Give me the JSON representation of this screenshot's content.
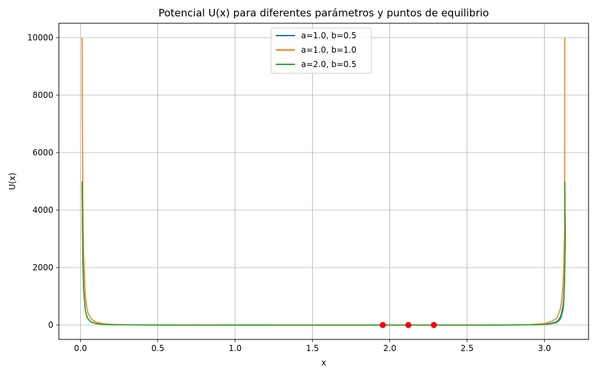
{
  "chart_data": {
    "type": "line",
    "title": "Potencial U(x) para diferentes parámetros y puntos de equilibrio",
    "xlabel": "x",
    "ylabel": "U(x)",
    "xlim": [
      -0.14,
      3.285
    ],
    "ylim": [
      -500,
      10500
    ],
    "xticks": [
      0.0,
      0.5,
      1.0,
      1.5,
      2.0,
      2.5,
      3.0
    ],
    "xtick_labels": [
      "0.0",
      "0.5",
      "1.0",
      "1.5",
      "2.0",
      "2.5",
      "3.0"
    ],
    "yticks": [
      0,
      2000,
      4000,
      6000,
      8000,
      10000
    ],
    "ytick_labels": [
      "0",
      "2000",
      "4000",
      "6000",
      "8000",
      "10000"
    ],
    "grid": true,
    "legend_position": "top-center",
    "series": [
      {
        "name": "a=1.0, b=0.5",
        "color": "#1f77b4",
        "points": [
          [
            0.01,
            5000
          ],
          [
            0.015,
            2222
          ],
          [
            0.02,
            1250
          ],
          [
            0.03,
            556
          ],
          [
            0.04,
            312
          ],
          [
            0.05,
            200
          ],
          [
            0.07,
            102
          ],
          [
            0.1,
            50
          ],
          [
            0.15,
            22
          ],
          [
            0.2,
            12.5
          ],
          [
            0.3,
            5.6
          ],
          [
            0.5,
            2
          ],
          [
            1.0,
            0.5
          ],
          [
            1.5,
            0.22
          ],
          [
            1.95,
            0
          ],
          [
            2.0,
            0.05
          ],
          [
            2.5,
            0.3
          ],
          [
            2.7,
            1.6
          ],
          [
            2.9,
            8
          ],
          [
            3.0,
            25
          ],
          [
            3.05,
            68
          ],
          [
            3.08,
            120
          ],
          [
            3.1,
            250
          ],
          [
            3.11,
            400
          ],
          [
            3.12,
            690
          ],
          [
            3.125,
            1000
          ],
          [
            3.13,
            1600
          ],
          [
            3.135,
            3000
          ],
          [
            3.1316,
            5000
          ]
        ]
      },
      {
        "name": "a=1.0, b=1.0",
        "color": "#ff7f0e",
        "points": [
          [
            0.01,
            10000
          ],
          [
            0.012,
            6944
          ],
          [
            0.015,
            4444
          ],
          [
            0.02,
            2500
          ],
          [
            0.03,
            1111
          ],
          [
            0.04,
            625
          ],
          [
            0.05,
            400
          ],
          [
            0.07,
            204
          ],
          [
            0.1,
            100
          ],
          [
            0.15,
            44
          ],
          [
            0.2,
            25
          ],
          [
            0.3,
            11
          ],
          [
            0.5,
            4
          ],
          [
            1.0,
            1
          ],
          [
            1.5,
            0.44
          ],
          [
            2.0,
            0.1
          ],
          [
            2.12,
            0
          ],
          [
            2.5,
            0.6
          ],
          [
            2.7,
            3.2
          ],
          [
            2.9,
            16
          ],
          [
            3.0,
            50
          ],
          [
            3.05,
            136
          ],
          [
            3.08,
            240
          ],
          [
            3.1,
            500
          ],
          [
            3.11,
            800
          ],
          [
            3.12,
            1380
          ],
          [
            3.125,
            2000
          ],
          [
            3.13,
            3200
          ],
          [
            3.1316,
            10000
          ]
        ]
      },
      {
        "name": "a=2.0, b=0.5",
        "color": "#2ca02c",
        "points": [
          [
            0.01,
            5000
          ],
          [
            0.015,
            2222
          ],
          [
            0.02,
            1250
          ],
          [
            0.03,
            556
          ],
          [
            0.04,
            312
          ],
          [
            0.05,
            200
          ],
          [
            0.07,
            102
          ],
          [
            0.1,
            50
          ],
          [
            0.15,
            22
          ],
          [
            0.2,
            12.5
          ],
          [
            0.3,
            5.6
          ],
          [
            0.5,
            2
          ],
          [
            1.0,
            0.5
          ],
          [
            1.5,
            0.22
          ],
          [
            2.0,
            0.05
          ],
          [
            2.28,
            0
          ],
          [
            2.5,
            0.2
          ],
          [
            2.7,
            1.1
          ],
          [
            2.9,
            6
          ],
          [
            3.0,
            20
          ],
          [
            3.05,
            50
          ],
          [
            3.08,
            90
          ],
          [
            3.1,
            180
          ],
          [
            3.11,
            300
          ],
          [
            3.12,
            520
          ],
          [
            3.125,
            800
          ],
          [
            3.13,
            1400
          ],
          [
            3.135,
            3000
          ],
          [
            3.1316,
            5000
          ]
        ]
      }
    ],
    "equilibrium_points": {
      "color": "#ff0000",
      "points": [
        [
          1.955,
          0
        ],
        [
          2.12,
          0
        ],
        [
          2.285,
          0
        ]
      ]
    }
  }
}
